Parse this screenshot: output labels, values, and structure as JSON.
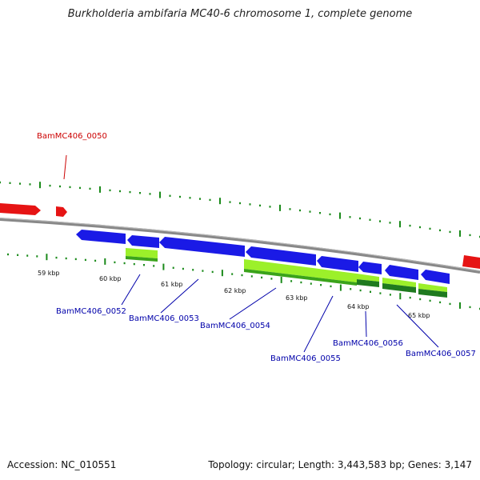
{
  "title": "Burkholderia ambifaria MC40-6 chromosome 1, complete genome",
  "footer": {
    "accession": "Accession: NC_010551",
    "summary": "Topology: circular; Length: 3,443,583 bp; Genes: 3,147"
  },
  "colors": {
    "forward_gene": "#e61414",
    "reverse_gene": "#1a1ae6",
    "cds": "#9cf02a",
    "cds_dark": "#3aa31a",
    "backbone": "#888888",
    "tick": "#1a8a1a",
    "label_forward": "#cc0000",
    "label_reverse": "#0000aa"
  },
  "scale_labels": [
    "59 kbp",
    "60 kbp",
    "61 kbp",
    "62 kbp",
    "63 kbp",
    "64 kbp",
    "65 kbp"
  ],
  "gene_labels": [
    {
      "id": "g0050",
      "text": "BamMC406_0050",
      "strand": "forward"
    },
    {
      "id": "g0052",
      "text": "BamMC406_0052",
      "strand": "reverse"
    },
    {
      "id": "g0053",
      "text": "BamMC406_0053",
      "strand": "reverse"
    },
    {
      "id": "g0054",
      "text": "BamMC406_0054",
      "strand": "reverse"
    },
    {
      "id": "g0055",
      "text": "BamMC406_0055",
      "strand": "reverse"
    },
    {
      "id": "g0056",
      "text": "BamMC406_0056",
      "strand": "reverse"
    },
    {
      "id": "g0057",
      "text": "BamMC406_0057",
      "strand": "reverse"
    }
  ]
}
